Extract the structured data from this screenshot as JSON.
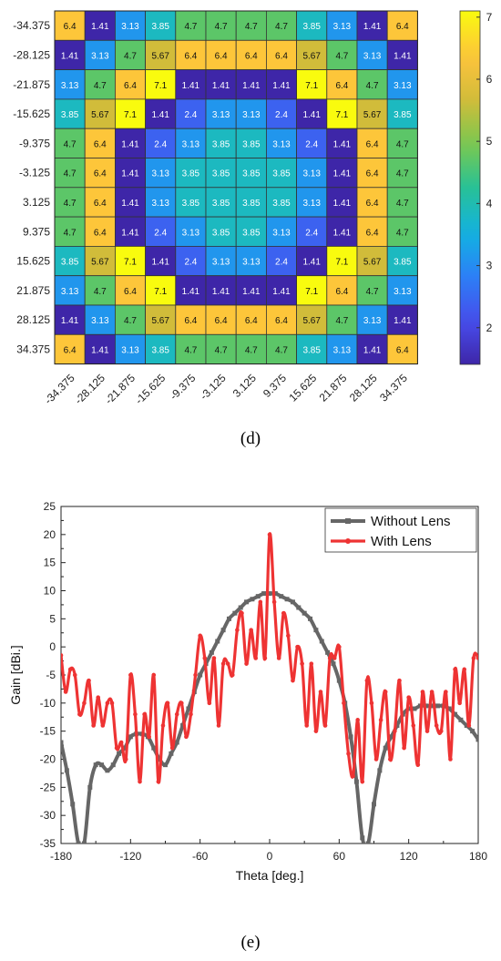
{
  "panels": {
    "d_label": "(d)",
    "e_label": "(e)"
  },
  "chart_data": [
    {
      "type": "heatmap",
      "rows": [
        "-34.375",
        "-28.125",
        "-21.875",
        "-15.625",
        "-9.375",
        "-3.125",
        "3.125",
        "9.375",
        "15.625",
        "21.875",
        "28.125",
        "34.375"
      ],
      "cols": [
        "-34.375",
        "-28.125",
        "-21.875",
        "-15.625",
        "-9.375",
        "-3.125",
        "3.125",
        "9.375",
        "15.625",
        "21.875",
        "28.125",
        "34.375"
      ],
      "values": [
        [
          6.4,
          1.41,
          3.13,
          3.85,
          4.7,
          4.7,
          4.7,
          4.7,
          3.85,
          3.13,
          1.41,
          6.4
        ],
        [
          1.41,
          3.13,
          4.7,
          5.67,
          6.4,
          6.4,
          6.4,
          6.4,
          5.67,
          4.7,
          3.13,
          1.41
        ],
        [
          3.13,
          4.7,
          6.4,
          7.1,
          1.41,
          1.41,
          1.41,
          1.41,
          7.1,
          6.4,
          4.7,
          3.13
        ],
        [
          3.85,
          5.67,
          7.1,
          1.41,
          2.4,
          3.13,
          3.13,
          2.4,
          1.41,
          7.1,
          5.67,
          3.85
        ],
        [
          4.7,
          6.4,
          1.41,
          2.4,
          3.13,
          3.85,
          3.85,
          3.13,
          2.4,
          1.41,
          6.4,
          4.7
        ],
        [
          4.7,
          6.4,
          1.41,
          3.13,
          3.85,
          3.85,
          3.85,
          3.85,
          3.13,
          1.41,
          6.4,
          4.7
        ],
        [
          4.7,
          6.4,
          1.41,
          3.13,
          3.85,
          3.85,
          3.85,
          3.85,
          3.13,
          1.41,
          6.4,
          4.7
        ],
        [
          4.7,
          6.4,
          1.41,
          2.4,
          3.13,
          3.85,
          3.85,
          3.13,
          2.4,
          1.41,
          6.4,
          4.7
        ],
        [
          3.85,
          5.67,
          7.1,
          1.41,
          2.4,
          3.13,
          3.13,
          2.4,
          1.41,
          7.1,
          5.67,
          3.85
        ],
        [
          3.13,
          4.7,
          6.4,
          7.1,
          1.41,
          1.41,
          1.41,
          1.41,
          7.1,
          6.4,
          4.7,
          3.13
        ],
        [
          1.41,
          3.13,
          4.7,
          5.67,
          6.4,
          6.4,
          6.4,
          6.4,
          5.67,
          4.7,
          3.13,
          1.41
        ],
        [
          6.4,
          1.41,
          3.13,
          3.85,
          4.7,
          4.7,
          4.7,
          4.7,
          3.85,
          3.13,
          1.41,
          6.4
        ]
      ],
      "colorbar": {
        "range": [
          1.41,
          7.1
        ],
        "ticks": [
          2,
          3,
          4,
          5,
          6,
          7
        ],
        "colormap": "parula"
      }
    },
    {
      "type": "line",
      "xlabel": "Theta [deg.]",
      "ylabel": "Gain [dBi.]",
      "xlim": [
        -180,
        180
      ],
      "ylim": [
        -35,
        25
      ],
      "xticks": [
        -180,
        -120,
        -60,
        0,
        60,
        120,
        180
      ],
      "yticks": [
        25,
        20,
        15,
        10,
        5,
        0,
        -5,
        -10,
        -15,
        -20,
        -25,
        -30,
        -35
      ],
      "legend": "top-right",
      "series": [
        {
          "name": "Without Lens",
          "color": "#666666",
          "x": [
            -180,
            -175,
            -170,
            -165,
            -160,
            -155,
            -150,
            -145,
            -140,
            -135,
            -130,
            -125,
            -120,
            -115,
            -110,
            -105,
            -100,
            -95,
            -90,
            -85,
            -80,
            -75,
            -70,
            -65,
            -60,
            -55,
            -50,
            -45,
            -40,
            -35,
            -30,
            -25,
            -20,
            -15,
            -10,
            -5,
            0,
            5,
            10,
            15,
            20,
            25,
            30,
            35,
            40,
            45,
            50,
            55,
            60,
            65,
            70,
            75,
            80,
            85,
            90,
            95,
            100,
            105,
            110,
            115,
            120,
            125,
            130,
            135,
            140,
            145,
            150,
            155,
            160,
            165,
            170,
            175,
            180
          ],
          "y": [
            -17,
            -22,
            -28,
            -35,
            -35,
            -25,
            -21,
            -21,
            -22,
            -21,
            -19,
            -18,
            -16,
            -15.5,
            -15.5,
            -16,
            -18,
            -20,
            -21,
            -19,
            -17,
            -14,
            -11,
            -8,
            -5,
            -3,
            -1,
            1,
            3,
            5,
            6,
            7,
            8,
            8.5,
            9,
            9.5,
            9.5,
            9.5,
            9,
            8.5,
            8,
            7,
            6,
            5,
            3,
            1,
            -1,
            -3,
            -6,
            -10,
            -16,
            -24,
            -34,
            -35,
            -28,
            -22,
            -18,
            -16,
            -14,
            -12,
            -11,
            -11,
            -10.5,
            -10.5,
            -10.5,
            -10.5,
            -10.5,
            -11,
            -12,
            -13,
            -14,
            -15,
            -16.5
          ]
        },
        {
          "name": "With Lens",
          "color": "#ee3333",
          "x": [
            -180,
            -176,
            -172,
            -168,
            -164,
            -160,
            -156,
            -152,
            -148,
            -144,
            -140,
            -136,
            -132,
            -128,
            -124,
            -120,
            -116,
            -112,
            -108,
            -104,
            -100,
            -96,
            -92,
            -88,
            -84,
            -80,
            -76,
            -72,
            -68,
            -64,
            -60,
            -56,
            -52,
            -48,
            -44,
            -40,
            -36,
            -32,
            -28,
            -24,
            -20,
            -16,
            -12,
            -8,
            -4,
            0,
            4,
            8,
            12,
            16,
            20,
            24,
            28,
            32,
            36,
            40,
            44,
            48,
            52,
            56,
            60,
            64,
            68,
            72,
            76,
            80,
            84,
            88,
            92,
            96,
            100,
            104,
            108,
            112,
            116,
            120,
            124,
            128,
            132,
            136,
            140,
            144,
            148,
            152,
            156,
            160,
            164,
            168,
            172,
            176,
            180
          ],
          "y": [
            -1.5,
            -8,
            -4,
            -5,
            -12,
            -10,
            -6,
            -14,
            -9,
            -14,
            -10,
            -10,
            -18,
            -17,
            -20,
            -5,
            -12,
            -24,
            -12,
            -16,
            -5,
            -24,
            -14,
            -10,
            -18,
            -12,
            -10,
            -16,
            -12,
            -5,
            2,
            -2,
            -10,
            -2,
            -14,
            -3,
            -3,
            -5,
            3,
            6,
            -3,
            3,
            -2,
            8,
            -2,
            20,
            8,
            -2,
            6,
            2,
            -6,
            0,
            -3,
            -14,
            -3,
            -15,
            -8,
            -14,
            -2,
            -2,
            0,
            -10,
            -19,
            -23,
            -13,
            -24,
            -6,
            -10,
            -20,
            -13,
            -8,
            -20,
            -15,
            -6,
            -18,
            -9,
            -14,
            -21,
            -8,
            -15,
            -8,
            -14,
            -15,
            -8,
            -20,
            -4,
            -10,
            -4,
            -14,
            -2,
            -2
          ]
        }
      ]
    }
  ]
}
